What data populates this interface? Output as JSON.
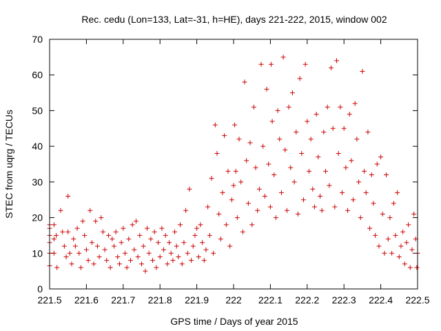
{
  "chart_data": {
    "type": "scatter",
    "title": "Rec. cedu (Lon=133, Lat=-31, h=HE), days 221-222, 2015, window 002",
    "xlabel": "GPS time / Days of year 2015",
    "ylabel": "STEC from uqrg / TECUs",
    "xlim": [
      221.5,
      222.5
    ],
    "ylim": [
      0,
      70
    ],
    "xticks": [
      221.5,
      221.6,
      221.7,
      221.8,
      221.9,
      222.0,
      222.1,
      222.2,
      222.3,
      222.4,
      222.5
    ],
    "xtick_labels": [
      "221.5",
      "221.6",
      "221.7",
      "221.8",
      "221.9",
      "222",
      "222.1",
      "222.2",
      "222.3",
      "222.4",
      "222.5"
    ],
    "yticks": [
      0,
      10,
      20,
      30,
      40,
      50,
      60,
      70
    ],
    "ytick_labels": [
      "0",
      "10",
      "20",
      "30",
      "40",
      "50",
      "60",
      "70"
    ],
    "grid": false,
    "marker": "plus",
    "color": "#cc0000",
    "series": [
      {
        "points": [
          [
            221.5,
            18
          ],
          [
            221.5,
            17
          ],
          [
            221.5,
            15
          ],
          [
            221.5,
            13
          ],
          [
            221.5,
            10
          ],
          [
            221.5,
            6.5
          ],
          [
            221.512,
            18
          ],
          [
            221.512,
            14
          ],
          [
            221.512,
            10
          ],
          [
            221.518,
            15
          ],
          [
            221.52,
            6
          ],
          [
            221.53,
            22
          ],
          [
            221.535,
            16
          ],
          [
            221.54,
            12
          ],
          [
            221.545,
            9
          ],
          [
            221.55,
            26
          ],
          [
            221.55,
            16
          ],
          [
            221.555,
            10
          ],
          [
            221.56,
            7
          ],
          [
            221.565,
            14
          ],
          [
            221.57,
            12
          ],
          [
            221.575,
            17
          ],
          [
            221.58,
            10
          ],
          [
            221.585,
            6
          ],
          [
            221.59,
            19
          ],
          [
            221.595,
            15
          ],
          [
            221.6,
            11
          ],
          [
            221.605,
            8
          ],
          [
            221.61,
            22
          ],
          [
            221.615,
            13
          ],
          [
            221.62,
            7
          ],
          [
            221.625,
            19
          ],
          [
            221.63,
            12
          ],
          [
            221.635,
            9
          ],
          [
            221.64,
            20
          ],
          [
            221.645,
            16
          ],
          [
            221.65,
            11
          ],
          [
            221.655,
            8
          ],
          [
            221.66,
            15
          ],
          [
            221.665,
            6
          ],
          [
            221.67,
            14
          ],
          [
            221.675,
            12
          ],
          [
            221.68,
            16
          ],
          [
            221.685,
            9
          ],
          [
            221.69,
            7
          ],
          [
            221.695,
            13
          ],
          [
            221.7,
            17
          ],
          [
            221.705,
            10
          ],
          [
            221.71,
            6
          ],
          [
            221.715,
            14
          ],
          [
            221.72,
            8
          ],
          [
            221.725,
            18
          ],
          [
            221.73,
            11
          ],
          [
            221.735,
            19
          ],
          [
            221.74,
            9
          ],
          [
            221.745,
            15
          ],
          [
            221.75,
            7
          ],
          [
            221.755,
            12
          ],
          [
            221.76,
            5
          ],
          [
            221.765,
            17
          ],
          [
            221.77,
            10
          ],
          [
            221.775,
            14
          ],
          [
            221.78,
            8
          ],
          [
            221.785,
            16
          ],
          [
            221.79,
            6
          ],
          [
            221.795,
            13
          ],
          [
            221.8,
            9
          ],
          [
            221.805,
            17
          ],
          [
            221.81,
            11
          ],
          [
            221.815,
            15
          ],
          [
            221.82,
            7
          ],
          [
            221.825,
            13
          ],
          [
            221.83,
            10
          ],
          [
            221.835,
            8
          ],
          [
            221.84,
            16
          ],
          [
            221.845,
            12
          ],
          [
            221.85,
            9
          ],
          [
            221.855,
            18
          ],
          [
            221.86,
            7
          ],
          [
            221.865,
            13
          ],
          [
            221.87,
            22
          ],
          [
            221.875,
            10
          ],
          [
            221.88,
            28
          ],
          [
            221.885,
            8
          ],
          [
            221.89,
            12
          ],
          [
            221.895,
            15
          ],
          [
            221.9,
            17
          ],
          [
            221.905,
            9
          ],
          [
            221.91,
            18
          ],
          [
            221.915,
            13
          ],
          [
            221.92,
            8
          ],
          [
            221.925,
            11
          ],
          [
            221.93,
            23
          ],
          [
            221.935,
            15
          ],
          [
            221.94,
            31
          ],
          [
            221.945,
            10
          ],
          [
            221.95,
            46
          ],
          [
            221.955,
            38
          ],
          [
            221.96,
            21
          ],
          [
            221.965,
            14
          ],
          [
            221.97,
            27
          ],
          [
            221.975,
            43
          ],
          [
            221.98,
            18
          ],
          [
            221.985,
            33
          ],
          [
            221.99,
            12
          ],
          [
            221.995,
            25
          ],
          [
            222.0,
            29
          ],
          [
            222.003,
            46
          ],
          [
            222.006,
            33
          ],
          [
            222.01,
            20
          ],
          [
            222.015,
            42
          ],
          [
            222.02,
            30
          ],
          [
            222.025,
            16
          ],
          [
            222.03,
            58
          ],
          [
            222.035,
            36
          ],
          [
            222.04,
            24
          ],
          [
            222.045,
            41
          ],
          [
            222.05,
            18
          ],
          [
            222.055,
            51
          ],
          [
            222.06,
            34
          ],
          [
            222.065,
            22
          ],
          [
            222.07,
            28
          ],
          [
            222.075,
            63
          ],
          [
            222.08,
            40
          ],
          [
            222.085,
            26
          ],
          [
            222.09,
            56
          ],
          [
            222.095,
            35
          ],
          [
            222.1,
            23
          ],
          [
            222.102,
            63
          ],
          [
            222.105,
            47
          ],
          [
            222.11,
            32
          ],
          [
            222.115,
            20
          ],
          [
            222.12,
            50
          ],
          [
            222.125,
            42
          ],
          [
            222.13,
            27
          ],
          [
            222.135,
            65
          ],
          [
            222.14,
            39
          ],
          [
            222.145,
            22
          ],
          [
            222.15,
            51
          ],
          [
            222.155,
            34
          ],
          [
            222.16,
            55
          ],
          [
            222.165,
            30
          ],
          [
            222.17,
            44
          ],
          [
            222.175,
            21
          ],
          [
            222.18,
            59
          ],
          [
            222.185,
            38
          ],
          [
            222.19,
            25
          ],
          [
            222.195,
            63
          ],
          [
            222.2,
            47
          ],
          [
            222.205,
            33
          ],
          [
            222.21,
            42
          ],
          [
            222.215,
            28
          ],
          [
            222.22,
            23
          ],
          [
            222.225,
            49
          ],
          [
            222.23,
            37
          ],
          [
            222.235,
            26
          ],
          [
            222.24,
            22
          ],
          [
            222.245,
            44
          ],
          [
            222.25,
            33
          ],
          [
            222.255,
            51
          ],
          [
            222.26,
            29
          ],
          [
            222.265,
            62
          ],
          [
            222.27,
            45
          ],
          [
            222.275,
            23
          ],
          [
            222.28,
            64
          ],
          [
            222.285,
            38
          ],
          [
            222.29,
            51
          ],
          [
            222.295,
            27
          ],
          [
            222.3,
            45
          ],
          [
            222.305,
            34
          ],
          [
            222.31,
            22
          ],
          [
            222.315,
            49
          ],
          [
            222.32,
            36
          ],
          [
            222.325,
            25
          ],
          [
            222.33,
            52
          ],
          [
            222.335,
            42
          ],
          [
            222.34,
            30
          ],
          [
            222.345,
            20
          ],
          [
            222.35,
            61
          ],
          [
            222.355,
            33
          ],
          [
            222.36,
            27
          ],
          [
            222.365,
            44
          ],
          [
            222.37,
            17
          ],
          [
            222.375,
            32
          ],
          [
            222.38,
            24
          ],
          [
            222.385,
            15
          ],
          [
            222.39,
            35
          ],
          [
            222.395,
            12
          ],
          [
            222.4,
            37
          ],
          [
            222.405,
            21
          ],
          [
            222.41,
            10
          ],
          [
            222.415,
            32
          ],
          [
            222.42,
            14
          ],
          [
            222.425,
            20
          ],
          [
            222.43,
            10
          ],
          [
            222.435,
            24
          ],
          [
            222.44,
            15
          ],
          [
            222.445,
            27
          ],
          [
            222.45,
            9
          ],
          [
            222.455,
            12
          ],
          [
            222.46,
            16
          ],
          [
            222.465,
            7
          ],
          [
            222.47,
            13
          ],
          [
            222.475,
            18
          ],
          [
            222.48,
            6
          ],
          [
            222.485,
            11
          ],
          [
            222.49,
            21
          ],
          [
            222.495,
            14
          ],
          [
            222.498,
            6
          ],
          [
            222.5,
            10
          ]
        ]
      }
    ]
  }
}
